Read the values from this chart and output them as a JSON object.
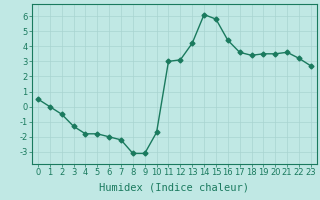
{
  "xlabel": "Humidex (Indice chaleur)",
  "x": [
    0,
    1,
    2,
    3,
    4,
    5,
    6,
    7,
    8,
    9,
    10,
    11,
    12,
    13,
    14,
    15,
    16,
    17,
    18,
    19,
    20,
    21,
    22,
    23
  ],
  "y": [
    0.5,
    0.0,
    -0.5,
    -1.3,
    -1.8,
    -1.8,
    -2.0,
    -2.2,
    -3.1,
    -3.1,
    -1.7,
    3.0,
    3.1,
    4.2,
    6.1,
    5.8,
    4.4,
    3.6,
    3.4,
    3.5,
    3.5,
    3.6,
    3.2,
    2.7
  ],
  "line_color": "#1a7a5e",
  "marker": "D",
  "marker_size": 2.5,
  "bg_color": "#c0e8e4",
  "grid_color": "#a8d4d0",
  "axis_color": "#1a7a5e",
  "ylim": [
    -3.8,
    6.8
  ],
  "xlim": [
    -0.5,
    23.5
  ],
  "yticks": [
    -3,
    -2,
    -1,
    0,
    1,
    2,
    3,
    4,
    5,
    6
  ],
  "xticks": [
    0,
    1,
    2,
    3,
    4,
    5,
    6,
    7,
    8,
    9,
    10,
    11,
    12,
    13,
    14,
    15,
    16,
    17,
    18,
    19,
    20,
    21,
    22,
    23
  ],
  "tick_fontsize": 6,
  "label_fontsize": 7.5
}
